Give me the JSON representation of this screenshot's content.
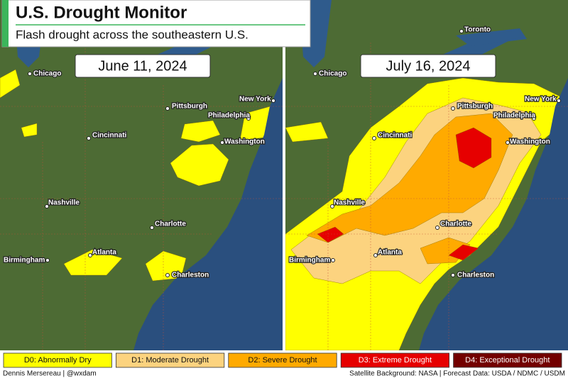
{
  "header": {
    "title": "U.S. Drought Monitor",
    "subtitle": "Flash drought across the southeastern U.S."
  },
  "panels": [
    {
      "date": "June 11, 2024",
      "cities": [
        "Chicago",
        "Pittsburgh",
        "New York",
        "Philadelphia",
        "Cincinnati",
        "Washington",
        "Nashville",
        "Charlotte",
        "Atlanta",
        "Birmingham",
        "Charleston"
      ]
    },
    {
      "date": "July 16, 2024",
      "cities": [
        "Toronto",
        "Chicago",
        "Pittsburgh",
        "New York",
        "Philadelphia",
        "Cincinnati",
        "Washington",
        "Nashville",
        "Charlotte",
        "Atlanta",
        "Birmingham",
        "Charleston"
      ]
    }
  ],
  "legend": [
    {
      "label": "D0: Abnormally Dry",
      "color": "#ffff00"
    },
    {
      "label": "D1: Moderate Drought",
      "color": "#fcd37f"
    },
    {
      "label": "D2: Severe Drought",
      "color": "#ffaa00"
    },
    {
      "label": "D3: Extreme Drought",
      "color": "#e60000"
    },
    {
      "label": "D4: Exceptional Drought",
      "color": "#730000"
    }
  ],
  "footer": {
    "left": "Dennis Mersereau | @wxdam",
    "right": "Satellite Background: NASA | Forecast Data: USDA / NDMC / USDM"
  }
}
